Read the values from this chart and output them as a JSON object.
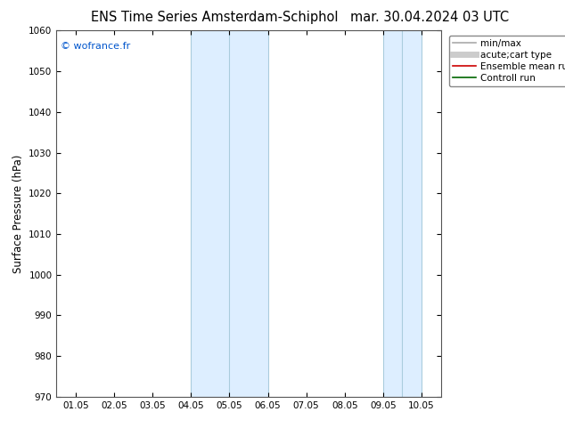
{
  "title_left": "ENS Time Series Amsterdam-Schiphol",
  "title_right": "mar. 30.04.2024 03 UTC",
  "ylabel": "Surface Pressure (hPa)",
  "ylim": [
    970,
    1060
  ],
  "yticks": [
    970,
    980,
    990,
    1000,
    1010,
    1020,
    1030,
    1040,
    1050,
    1060
  ],
  "xtick_labels": [
    "01.05",
    "02.05",
    "03.05",
    "04.05",
    "05.05",
    "06.05",
    "07.05",
    "08.05",
    "09.05",
    "10.05"
  ],
  "shaded_bands": [
    {
      "xstart": 3,
      "xend": 5
    },
    {
      "xstart": 8,
      "xend": 9
    }
  ],
  "band_color": "#ddeeff",
  "band_edge_color": "#aaccdd",
  "background_color": "#ffffff",
  "watermark": "© wofrance.fr",
  "watermark_color": "#0055cc",
  "legend_entries": [
    {
      "label": "min/max",
      "color": "#aaaaaa",
      "lw": 1.2
    },
    {
      "label": "acute;cart type",
      "color": "#cccccc",
      "lw": 5
    },
    {
      "label": "Ensemble mean run",
      "color": "#cc0000",
      "lw": 1.2
    },
    {
      "label": "Controll run",
      "color": "#006600",
      "lw": 1.2
    }
  ],
  "title_fontsize": 10.5,
  "tick_fontsize": 7.5,
  "ylabel_fontsize": 8.5,
  "legend_fontsize": 7.5,
  "spine_color": "#555555"
}
